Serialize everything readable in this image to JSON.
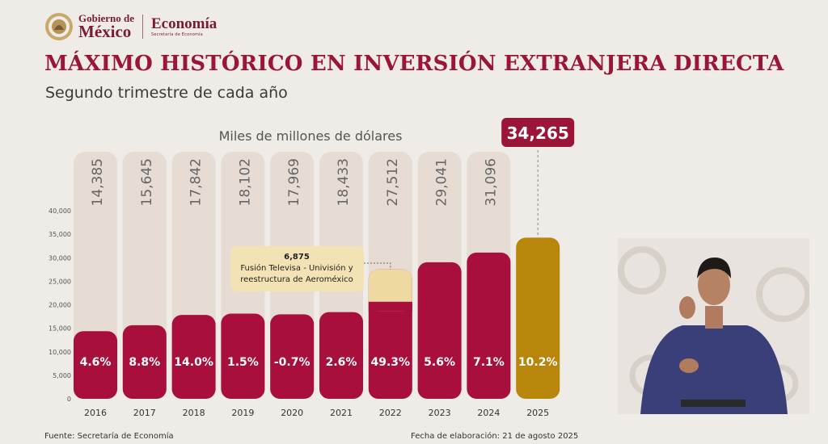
{
  "header": {
    "gobierno_line1": "Gobierno de",
    "gobierno_line2": "México",
    "ministry": "Economía",
    "ministry_sub": "Secretaría de Economía"
  },
  "colors": {
    "title": "#9b1538",
    "bar_red": "#a80f3d",
    "bar_gold": "#b8860b",
    "bar_extra": "#efd9a2",
    "column_bg": "#e6dcd4",
    "highlight_badge": "#9b1538"
  },
  "chart_data": {
    "type": "bar",
    "title": "MÁXIMO HISTÓRICO EN INVERSIÓN EXTRANJERA DIRECTA",
    "subtitle": "Segundo trimestre de cada año",
    "ylabel": "Miles de millones de dólares",
    "ylim": [
      0,
      40000
    ],
    "yticks": [
      "0",
      "5,000",
      "10,000",
      "15,000",
      "20,000",
      "25,000",
      "30,000",
      "35,000",
      "40,000"
    ],
    "grid": false,
    "categories": [
      "2016",
      "2017",
      "2018",
      "2019",
      "2020",
      "2021",
      "2022",
      "2023",
      "2024",
      "2025"
    ],
    "values": [
      14385,
      15645,
      17842,
      18102,
      17969,
      18433,
      27512,
      29041,
      31096,
      34265
    ],
    "value_labels": [
      "14,385",
      "15,645",
      "17,842",
      "18,102",
      "17,969",
      "18,433",
      "27,512",
      "29,041",
      "31,096",
      "34,265"
    ],
    "growth_labels": [
      "4.6%",
      "8.8%",
      "14.0%",
      "1.5%",
      "-0.7%",
      "2.6%",
      "49.3%",
      "5.6%",
      "7.1%",
      "10.2%"
    ],
    "annotation": {
      "category": "2022",
      "value": 6875,
      "value_label": "6,875",
      "text_line1": "Fusión Televisa - Univisión y",
      "text_line2": "reestructura de Aeroméxico"
    },
    "highlight": {
      "category": "2025",
      "label": "34,265"
    }
  },
  "footer": {
    "source": "Fuente: Secretaría de Economía",
    "date": "Fecha de elaboración: 21 de agosto 2025"
  }
}
